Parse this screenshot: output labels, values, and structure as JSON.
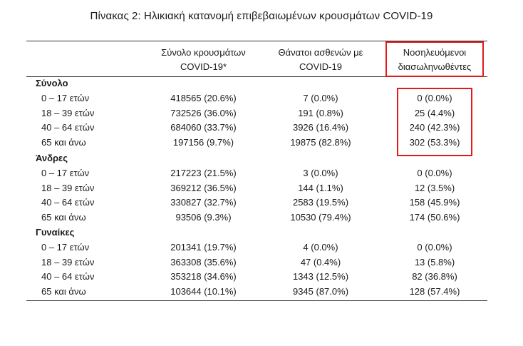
{
  "title": "Πίνακας 2: Ηλικιακή κατανομή επιβεβαιωμένων κρουσμάτων COVID-19",
  "columns": [
    {
      "line1": "Σύνολο κρουσμάτων",
      "line2": "COVID-19*"
    },
    {
      "line1": "Θάνατοι ασθενών με",
      "line2": "COVID-19"
    },
    {
      "line1": "Νοσηλευόμενοι",
      "line2": "διασωληνωθέντες"
    }
  ],
  "highlight_color": "#e01b1b",
  "sections": [
    {
      "name": "Σύνολο",
      "rows": [
        {
          "label": "0 – 17 ετών",
          "cases": "418565 (20.6%)",
          "deaths": "7 (0.0%)",
          "intubated": "0 (0.0%)"
        },
        {
          "label": "18 – 39 ετών",
          "cases": "732526 (36.0%)",
          "deaths": "191 (0.8%)",
          "intubated": "25 (4.4%)"
        },
        {
          "label": "40 – 64 ετών",
          "cases": "684060 (33.7%)",
          "deaths": "3926 (16.4%)",
          "intubated": "240 (42.3%)"
        },
        {
          "label": "65 και άνω",
          "cases": "197156 (9.7%)",
          "deaths": "19875 (82.8%)",
          "intubated": "302 (53.3%)"
        }
      ]
    },
    {
      "name": "Άνδρες",
      "rows": [
        {
          "label": "0 – 17 ετών",
          "cases": "217223 (21.5%)",
          "deaths": "3 (0.0%)",
          "intubated": "0 (0.0%)"
        },
        {
          "label": "18 – 39 ετών",
          "cases": "369212 (36.5%)",
          "deaths": "144 (1.1%)",
          "intubated": "12 (3.5%)"
        },
        {
          "label": "40 – 64 ετών",
          "cases": "330827 (32.7%)",
          "deaths": "2583 (19.5%)",
          "intubated": "158 (45.9%)"
        },
        {
          "label": "65 και άνω",
          "cases": "93506 (9.3%)",
          "deaths": "10530 (79.4%)",
          "intubated": "174 (50.6%)"
        }
      ]
    },
    {
      "name": "Γυναίκες",
      "rows": [
        {
          "label": "0 – 17 ετών",
          "cases": "201341 (19.7%)",
          "deaths": "4 (0.0%)",
          "intubated": "0 (0.0%)"
        },
        {
          "label": "18 – 39 ετών",
          "cases": "363308 (35.6%)",
          "deaths": "47 (0.4%)",
          "intubated": "13 (5.8%)"
        },
        {
          "label": "40 – 64 ετών",
          "cases": "353218 (34.6%)",
          "deaths": "1343 (12.5%)",
          "intubated": "82 (36.8%)"
        },
        {
          "label": "65 και άνω",
          "cases": "103644 (10.1%)",
          "deaths": "9345 (87.0%)",
          "intubated": "128 (57.4%)"
        }
      ]
    }
  ]
}
